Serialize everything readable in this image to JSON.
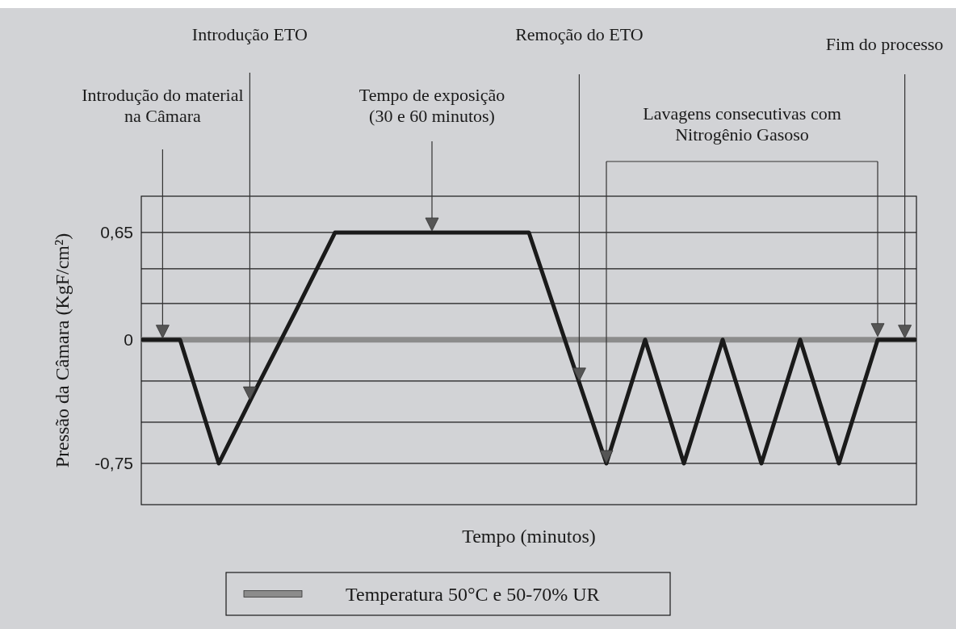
{
  "chart_data": {
    "type": "line",
    "ylabel": "Pressão da Câmara (KgF/cm²)",
    "xlabel": "Tempo (minutos)",
    "categories": [
      null,
      null,
      null,
      null,
      null,
      null,
      null,
      null,
      null,
      null,
      null,
      null,
      null,
      null,
      null,
      null,
      null,
      null,
      null,
      null,
      null
    ],
    "ylim": [
      -1,
      0.87
    ],
    "yticks": [
      {
        "value": -0.75,
        "label": "-0,75"
      },
      {
        "value": -0.5,
        "label": null
      },
      {
        "value": -0.25,
        "label": null
      },
      0,
      {
        "value": 0.22,
        "label": null
      },
      {
        "value": 0.43,
        "label": null
      },
      {
        "value": 0.65,
        "label": "0,65"
      }
    ],
    "grid": "y",
    "legend": "bottom",
    "series": [
      {
        "name": "Temperatura 50°C e 50-70% UR",
        "color": "#8c8c8c",
        "values": [
          0,
          0,
          0,
          0,
          0,
          0,
          0,
          0,
          0,
          0,
          0,
          0,
          0,
          0,
          0,
          0,
          0,
          0,
          0,
          0,
          0
        ]
      },
      {
        "color": "#1a1a1a",
        "values": [
          0,
          0,
          -0.75,
          -0.28,
          0.18,
          0.65,
          0.65,
          0.65,
          0.65,
          0.65,
          0.65,
          -0.05,
          -0.75,
          0,
          -0.75,
          0,
          -0.75,
          0,
          -0.75,
          0,
          0
        ]
      }
    ],
    "annotations": [
      "Introdução do material\nna Câmara",
      "Introdução ETO",
      "Tempo de exposição\n(30 e 60 minutos)",
      "Remoção do ETO",
      "Lavagens consecutivas com\nNitrogênio Gasoso",
      "Fim do processo"
    ]
  }
}
